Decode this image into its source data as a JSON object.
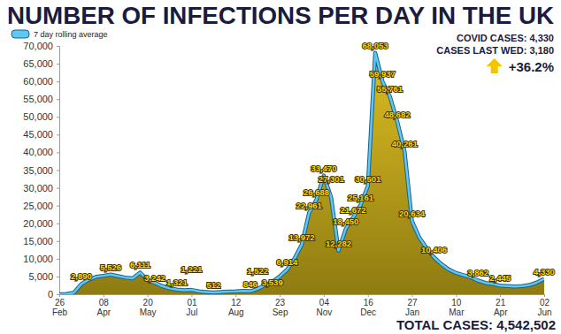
{
  "chart_data": {
    "type": "area",
    "title": "NUMBER OF INFECTIONS PER DAY IN THE UK",
    "categories": [
      "26 Feb",
      null,
      null,
      null,
      null,
      null,
      "08 Apr",
      null,
      null,
      null,
      null,
      null,
      "20 May",
      null,
      null,
      null,
      null,
      null,
      "01 Jul",
      null,
      null,
      null,
      null,
      null,
      "12 Aug",
      null,
      null,
      null,
      null,
      null,
      "23 Sep",
      null,
      null,
      null,
      null,
      null,
      "04 Nov",
      null,
      null,
      null,
      null,
      null,
      "16 Dec",
      null,
      null,
      null,
      null,
      null,
      "27 Jan",
      null,
      null,
      null,
      null,
      null,
      "10 Mar",
      null,
      null,
      null,
      null,
      null,
      "21 Apr",
      null,
      null,
      null,
      null,
      null,
      "02 Jun"
    ],
    "series": [
      {
        "name": "7 day rolling average",
        "color": "#5ec8f2",
        "values": [
          0,
          80,
          450,
          2890,
          4100,
          4900,
          5200,
          5526,
          5100,
          4700,
          4500,
          6111,
          4000,
          3242,
          2300,
          1700,
          1321,
          1100,
          1221,
          800,
          650,
          512,
          650,
          750,
          800,
          950,
          846,
          1522,
          2600,
          3539,
          5000,
          6914,
          10000,
          13972,
          22961,
          26688,
          33470,
          27301,
          12282,
          18450,
          21672,
          25161,
          30501,
          68053,
          59937,
          55761,
          48682,
          40261,
          20634,
          16000,
          13000,
          10406,
          8500,
          7000,
          6000,
          5400,
          4800,
          3862,
          3200,
          2900,
          2445,
          2300,
          2200,
          2300,
          2600,
          3300,
          4330
        ],
        "value_labels": [
          null,
          null,
          null,
          "2,890",
          null,
          null,
          null,
          "5,526",
          null,
          null,
          null,
          "6,111",
          null,
          "3,242",
          null,
          null,
          "1,321",
          null,
          "1,221",
          null,
          null,
          "512",
          null,
          null,
          null,
          null,
          "846",
          "1,522",
          null,
          "3,539",
          null,
          "6,914",
          null,
          "13,972",
          "22,961",
          "26,688",
          "33,470",
          "27,301",
          "12,282",
          "18,450",
          "21,672",
          "25,161",
          "30,501",
          "68,053",
          "59,937",
          "55,761",
          "48,682",
          "40,261",
          "20,634",
          null,
          null,
          "10,406",
          null,
          null,
          null,
          null,
          null,
          "3,862",
          null,
          null,
          "2,445",
          null,
          null,
          null,
          null,
          null,
          "4,330"
        ]
      }
    ],
    "ylim": [
      0,
      70000
    ],
    "yticks": [
      0,
      {
        "value": 5000,
        "label": "5,000"
      },
      {
        "value": 10000,
        "label": "10,000"
      },
      {
        "value": 15000,
        "label": "15,000"
      },
      {
        "value": 20000,
        "label": "20,000"
      },
      {
        "value": 25000,
        "label": "25,000"
      },
      {
        "value": 30000,
        "label": "30,000"
      },
      {
        "value": 35000,
        "label": "35,000"
      },
      {
        "value": 40000,
        "label": "40,000"
      },
      {
        "value": 45000,
        "label": "45,000"
      },
      {
        "value": 50000,
        "label": "50,000"
      },
      {
        "value": 55000,
        "label": "55,000"
      },
      {
        "value": 60000,
        "label": "60,000"
      },
      {
        "value": 65000,
        "label": "65,000"
      },
      {
        "value": 70000,
        "label": "70,000"
      }
    ],
    "grid": false,
    "legend": "upper left",
    "data_labels": true,
    "annotations": [
      "COVID CASES: 4,330",
      "CASES LAST WED: 3,180",
      "+36.2%",
      "TOTAL CASES: 4,542,502"
    ]
  }
}
